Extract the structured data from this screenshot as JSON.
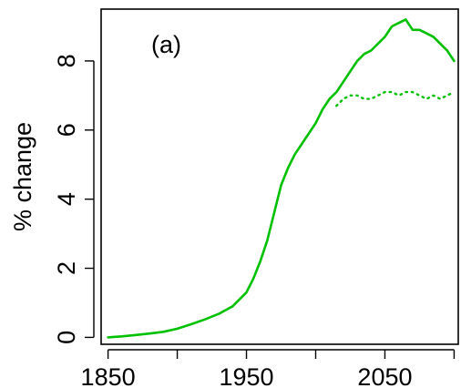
{
  "chart_data": {
    "type": "line",
    "title": "",
    "panel_label": "(a)",
    "xlabel": "",
    "ylabel": "% change",
    "xlim": [
      1845,
      2103
    ],
    "ylim": [
      -0.2,
      9.5
    ],
    "x_ticks": [
      1850,
      1900,
      1950,
      2000,
      2050,
      2100
    ],
    "x_tick_labels": [
      "1850",
      "",
      "1950",
      "",
      "2050",
      ""
    ],
    "y_ticks": [
      0,
      2,
      4,
      6,
      8
    ],
    "y_tick_labels": [
      "0",
      "2",
      "4",
      "6",
      "8"
    ],
    "grid": false,
    "legend": "none",
    "series": [
      {
        "style": "solid",
        "color": "#00c000",
        "x": [
          1850,
          1860,
          1870,
          1880,
          1890,
          1900,
          1910,
          1920,
          1930,
          1940,
          1945,
          1950,
          1955,
          1960,
          1965,
          1970,
          1975,
          1980,
          1985,
          1990,
          1995,
          2000,
          2005,
          2010,
          2015,
          2020,
          2025,
          2030,
          2035,
          2040,
          2045,
          2050,
          2055,
          2060,
          2065,
          2070,
          2075,
          2080,
          2085,
          2090,
          2095,
          2100
        ],
        "values": [
          0.0,
          0.03,
          0.07,
          0.11,
          0.16,
          0.25,
          0.38,
          0.52,
          0.68,
          0.9,
          1.1,
          1.3,
          1.7,
          2.2,
          2.8,
          3.6,
          4.4,
          4.9,
          5.3,
          5.6,
          5.9,
          6.2,
          6.6,
          6.9,
          7.1,
          7.4,
          7.7,
          8.0,
          8.2,
          8.3,
          8.5,
          8.7,
          9.0,
          9.1,
          9.2,
          8.9,
          8.9,
          8.8,
          8.7,
          8.5,
          8.3,
          8.0
        ]
      },
      {
        "style": "dotted",
        "color": "#00c000",
        "x": [
          2015,
          2020,
          2025,
          2030,
          2035,
          2040,
          2045,
          2050,
          2055,
          2060,
          2065,
          2070,
          2075,
          2080,
          2085,
          2090,
          2095,
          2100
        ],
        "values": [
          6.7,
          6.9,
          7.0,
          7.0,
          6.9,
          6.9,
          7.0,
          7.1,
          7.1,
          7.0,
          7.1,
          7.1,
          7.0,
          6.9,
          7.0,
          6.9,
          7.0,
          7.1
        ]
      }
    ]
  }
}
